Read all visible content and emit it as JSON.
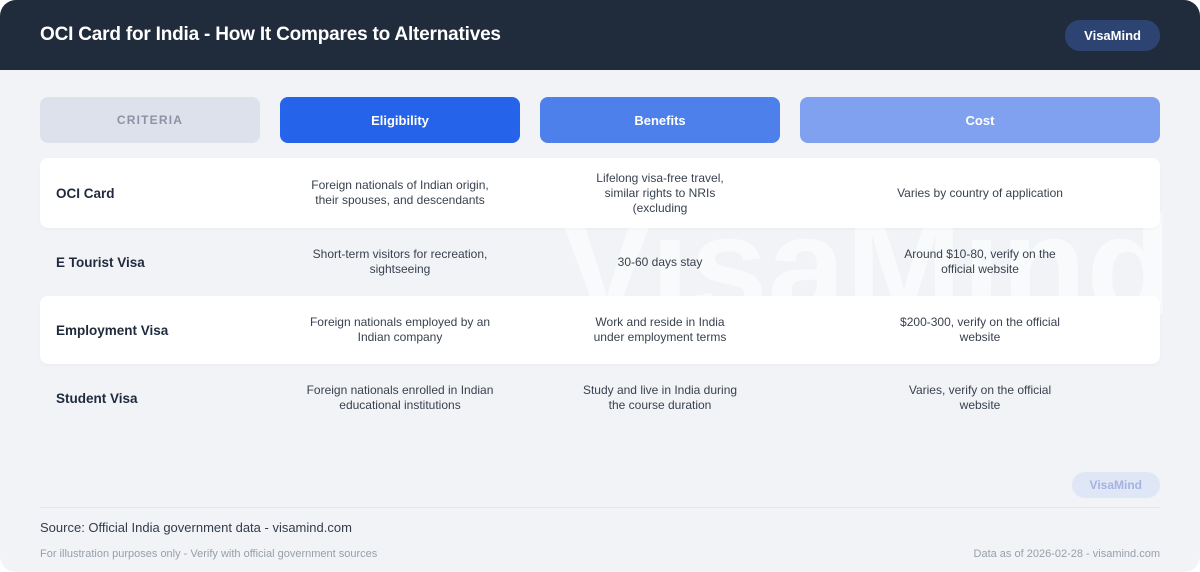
{
  "header": {
    "title": "OCI Card for India - How It Compares to Alternatives",
    "brand_badge": "VisaMind"
  },
  "watermark": "VisaMind",
  "table": {
    "columns": [
      {
        "label": "CRITERIA"
      },
      {
        "label": "Eligibility"
      },
      {
        "label": "Benefits"
      },
      {
        "label": "Cost"
      }
    ],
    "rows": [
      {
        "criteria": "OCI Card",
        "eligibility": "Foreign nationals of Indian origin, their spouses, and descendants",
        "benefits": "Lifelong visa-free travel, similar rights to NRIs (excluding",
        "cost": "Varies by country of application"
      },
      {
        "criteria": "E Tourist Visa",
        "eligibility": "Short-term visitors for recreation, sightseeing",
        "benefits": "30-60 days stay",
        "cost": "Around $10-80, verify on the official website"
      },
      {
        "criteria": "Employment Visa",
        "eligibility": "Foreign nationals employed by an Indian company",
        "benefits": "Work and reside in India under employment terms",
        "cost": "$200-300, verify on the official website"
      },
      {
        "criteria": "Student Visa",
        "eligibility": "Foreign nationals enrolled in Indian educational institutions",
        "benefits": "Study and live in India during the course duration",
        "cost": "Varies, verify on the official website"
      }
    ]
  },
  "footer": {
    "brand_badge": "VisaMind",
    "source": "Source: Official India government data - visamind.com",
    "disclaimer": "For illustration purposes only - Verify with official government sources",
    "data_as_of": "Data as of 2026-02-28 - visamind.com"
  },
  "colors": {
    "header_bg": "#202b3c",
    "header_badge_bg": "#2d4473",
    "body_bg": "#f1f3f7",
    "criteria_pill_bg": "#dce1ec",
    "criteria_pill_text": "#8b94a3",
    "eligibility_pill_bg": "#2563eb",
    "benefits_pill_bg": "#4d80ea",
    "cost_pill_bg": "#7fa1ef",
    "footer_badge_bg": "#dfe6f6",
    "footer_badge_text": "#a6b3e2"
  }
}
